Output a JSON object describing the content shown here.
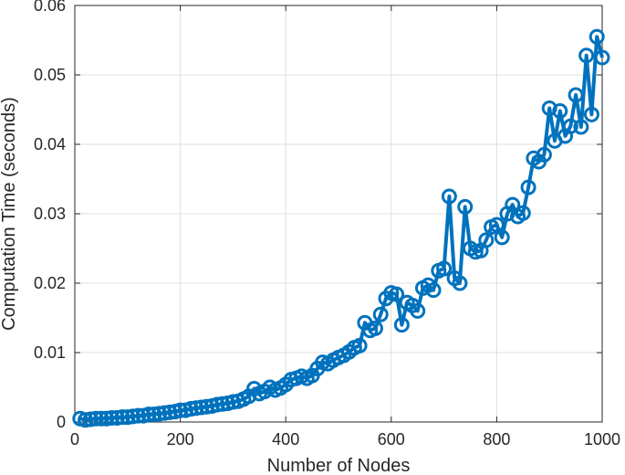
{
  "chart_data": {
    "type": "line",
    "title": "",
    "xlabel": "Number of Nodes",
    "ylabel": "Computation Time (seconds)",
    "xlim": [
      0,
      1000
    ],
    "ylim": [
      0,
      0.06
    ],
    "xticks": [
      0,
      200,
      400,
      600,
      800,
      1000
    ],
    "xtick_labels": [
      "0",
      "200",
      "400",
      "600",
      "800",
      "1000"
    ],
    "yticks": [
      0,
      0.01,
      0.02,
      0.03,
      0.04,
      0.05,
      0.06
    ],
    "ytick_labels": [
      "0",
      "0.01",
      "0.02",
      "0.03",
      "0.04",
      "0.05",
      "0.06"
    ],
    "grid": true,
    "marker": "circle",
    "line_color": "#0072BD",
    "series": [
      {
        "x": [
          10,
          20,
          30,
          40,
          50,
          60,
          70,
          80,
          90,
          100,
          110,
          120,
          130,
          140,
          150,
          160,
          170,
          180,
          190,
          200,
          210,
          220,
          230,
          240,
          250,
          260,
          270,
          280,
          290,
          300,
          310,
          320,
          330,
          340,
          350,
          360,
          370,
          380,
          390,
          400,
          410,
          420,
          430,
          440,
          450,
          460,
          470,
          480,
          490,
          500,
          510,
          520,
          530,
          540,
          550,
          560,
          570,
          580,
          590,
          600,
          610,
          620,
          630,
          640,
          650,
          660,
          670,
          680,
          690,
          700,
          710,
          720,
          730,
          740,
          750,
          760,
          770,
          780,
          790,
          800,
          810,
          820,
          830,
          840,
          850,
          860,
          870,
          880,
          890,
          900,
          910,
          920,
          930,
          940,
          950,
          960,
          970,
          980,
          990,
          1000
        ],
        "values": [
          0.0005,
          0.0003,
          0.0004,
          0.0005,
          0.0005,
          0.0005,
          0.0006,
          0.0006,
          0.0007,
          0.0007,
          0.0008,
          0.0009,
          0.0009,
          0.0011,
          0.0011,
          0.0012,
          0.0013,
          0.0014,
          0.0015,
          0.0017,
          0.0017,
          0.0019,
          0.002,
          0.0021,
          0.0022,
          0.0023,
          0.0025,
          0.0026,
          0.0027,
          0.0029,
          0.003,
          0.0033,
          0.0037,
          0.0048,
          0.0041,
          0.0044,
          0.005,
          0.0046,
          0.0049,
          0.0054,
          0.0061,
          0.0063,
          0.0066,
          0.0063,
          0.0067,
          0.0077,
          0.0086,
          0.0084,
          0.0089,
          0.0093,
          0.0096,
          0.0101,
          0.0107,
          0.011,
          0.0143,
          0.0132,
          0.0135,
          0.0155,
          0.0178,
          0.0186,
          0.0184,
          0.014,
          0.0172,
          0.0168,
          0.016,
          0.0193,
          0.0197,
          0.019,
          0.0218,
          0.0221,
          0.0325,
          0.0207,
          0.02,
          0.031,
          0.025,
          0.0245,
          0.0247,
          0.0262,
          0.0281,
          0.0284,
          0.0266,
          0.03,
          0.0313,
          0.0296,
          0.0301,
          0.0338,
          0.038,
          0.0375,
          0.0385,
          0.0452,
          0.0405,
          0.0448,
          0.0412,
          0.0426,
          0.0471,
          0.0425,
          0.0528,
          0.0443,
          0.0555,
          0.0525
        ]
      }
    ]
  }
}
